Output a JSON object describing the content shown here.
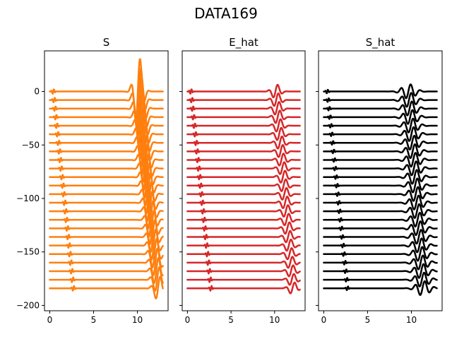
{
  "chart_data": {
    "type": "line",
    "suptitle": "DATA169",
    "n_traces": 24,
    "trace_offset_step": -8,
    "shared_y": true,
    "xlim": [
      -0.6,
      13.5
    ],
    "ylim": [
      -205,
      38
    ],
    "xticks": [
      0,
      5,
      10
    ],
    "xtick_labels": [
      "0",
      "5",
      "10"
    ],
    "yticks": [
      0,
      -50,
      -100,
      -150,
      -200
    ],
    "ytick_labels": [
      "0",
      "−50",
      "−100",
      "−150",
      "−200"
    ],
    "grid": false,
    "panels": [
      {
        "title": "S",
        "color": "#ff7f0e",
        "wavelet": {
          "t0": 10.1,
          "slope": 0.1,
          "amp_first": 34,
          "amp_last": 12,
          "freq": 0.55,
          "width": 0.45
        },
        "precursor": {
          "t": 0.4,
          "slope": 0.04,
          "amp": 2.5
        }
      },
      {
        "title": "E_hat",
        "color": "#d62728",
        "wavelet": {
          "t0": 10.15,
          "slope": 0.085,
          "amp_first": 7,
          "amp_last": 6,
          "freq": 0.55,
          "width": 0.45
        },
        "precursor": {
          "t": 0.4,
          "slope": 0.04,
          "amp": 2.5
        }
      },
      {
        "title": "S_hat",
        "color": "#000000",
        "wavelet": {
          "t0": 9.7,
          "slope": 0.07,
          "amp_first": 7,
          "amp_last": 7,
          "freq": 0.55,
          "width": 0.7
        },
        "precursor": {
          "t": 0.4,
          "slope": 0.04,
          "amp": 2.0
        }
      }
    ]
  }
}
